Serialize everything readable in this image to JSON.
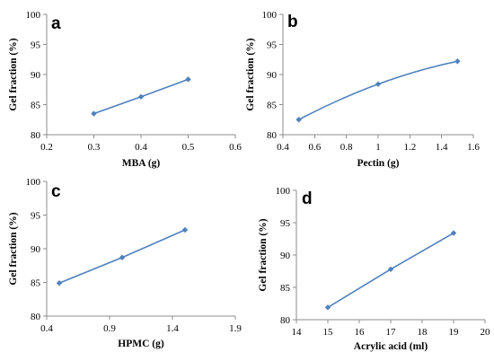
{
  "chart_data": [
    {
      "type": "line",
      "panel_label": "a",
      "xlabel": "MBA (g)",
      "ylabel": "Gel fraction (%)",
      "xlim": [
        0.2,
        0.6
      ],
      "ylim": [
        80,
        100
      ],
      "xticks": [
        "0.2",
        "0.3",
        "0.4",
        "0.5",
        "0.6"
      ],
      "yticks": [
        "80",
        "85",
        "90",
        "95",
        "100"
      ],
      "grid": false,
      "color": "#4f81bd",
      "x": [
        0.3,
        0.4,
        0.5
      ],
      "y": [
        83.5,
        86.3,
        89.2
      ]
    },
    {
      "type": "line",
      "panel_label": "b",
      "xlabel": "Pectin (g)",
      "ylabel": "Gel fraction (%)",
      "xlim": [
        0.4,
        1.6
      ],
      "ylim": [
        80,
        100
      ],
      "xticks": [
        "0.4",
        "0.6",
        "0.8",
        "1",
        "1.2",
        "1.4",
        "1.6"
      ],
      "yticks": [
        "80",
        "85",
        "90",
        "95",
        "100"
      ],
      "grid": false,
      "color": "#4f81bd",
      "smooth": true,
      "x": [
        0.5,
        1.0,
        1.5
      ],
      "y": [
        82.5,
        88.4,
        92.2
      ]
    },
    {
      "type": "line",
      "panel_label": "c",
      "xlabel": "HPMC (g)",
      "ylabel": "Gel fraction (%)",
      "xlim": [
        0.4,
        1.9
      ],
      "ylim": [
        80,
        100
      ],
      "xticks": [
        "0.4",
        "0.9",
        "1.4",
        "1.9"
      ],
      "yticks": [
        "80",
        "85",
        "90",
        "95",
        "100"
      ],
      "grid": false,
      "color": "#4f81bd",
      "x": [
        0.5,
        1.0,
        1.5
      ],
      "y": [
        84.9,
        88.7,
        92.8
      ]
    },
    {
      "type": "line",
      "panel_label": "d",
      "xlabel": "Acrylic acid (ml)",
      "ylabel": "Gel fraction (%)",
      "xlim": [
        14,
        20
      ],
      "ylim": [
        80,
        100
      ],
      "xticks": [
        "14",
        "15",
        "16",
        "17",
        "18",
        "19",
        "20"
      ],
      "yticks": [
        "80",
        "85",
        "90",
        "95",
        "100"
      ],
      "grid": false,
      "color": "#4f81bd",
      "x": [
        15,
        17,
        19
      ],
      "y": [
        81.9,
        87.8,
        93.4
      ]
    }
  ]
}
